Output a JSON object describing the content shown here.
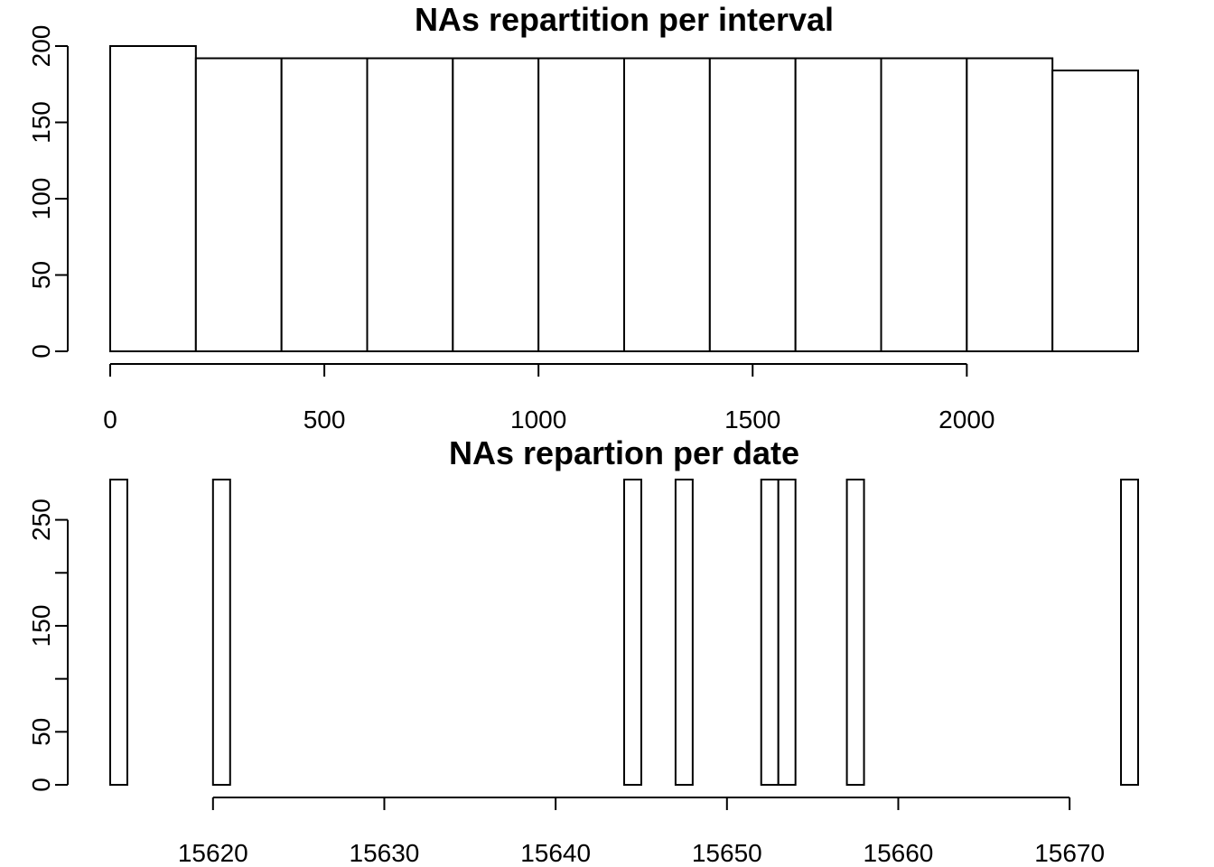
{
  "chart_data": [
    {
      "type": "bar",
      "title": "NAs repartition per interval",
      "xlabel": "",
      "ylabel": "",
      "x_bin_edges": [
        0,
        200,
        400,
        600,
        800,
        1000,
        1200,
        1400,
        1600,
        1800,
        2000,
        2200,
        2400
      ],
      "values": [
        200,
        192,
        192,
        192,
        192,
        192,
        192,
        192,
        192,
        192,
        192,
        184
      ],
      "x_ticks": [
        0,
        500,
        1000,
        1500,
        2000
      ],
      "x_tick_labels": [
        "0",
        "500",
        "1000",
        "1500",
        "2000"
      ],
      "y_ticks": [
        0,
        50,
        100,
        150,
        200
      ],
      "y_tick_labels": [
        "0",
        "50",
        "100",
        "150",
        "200"
      ],
      "xlim": [
        0,
        2400
      ],
      "ylim": [
        0,
        200
      ],
      "grid": false
    },
    {
      "type": "bar",
      "title": "NAs repartion per date",
      "xlabel": "",
      "ylabel": "",
      "bars": [
        {
          "x0": 15614,
          "x1": 15615,
          "value": 288
        },
        {
          "x0": 15620,
          "x1": 15621,
          "value": 288
        },
        {
          "x0": 15644,
          "x1": 15645,
          "value": 288
        },
        {
          "x0": 15647,
          "x1": 15648,
          "value": 288
        },
        {
          "x0": 15652,
          "x1": 15653,
          "value": 288
        },
        {
          "x0": 15653,
          "x1": 15654,
          "value": 288
        },
        {
          "x0": 15657,
          "x1": 15658,
          "value": 288
        },
        {
          "x0": 15673,
          "x1": 15674,
          "value": 288
        }
      ],
      "x_ticks": [
        15620,
        15630,
        15640,
        15650,
        15660,
        15670
      ],
      "x_tick_labels": [
        "15620",
        "15630",
        "15640",
        "15650",
        "15660",
        "15670"
      ],
      "y_ticks": [
        0,
        50,
        100,
        150,
        200,
        250
      ],
      "y_tick_labels": [
        "0",
        "50",
        "",
        "150",
        "",
        "250"
      ],
      "xlim": [
        15614,
        15674
      ],
      "ylim": [
        0,
        288
      ],
      "grid": false
    }
  ]
}
